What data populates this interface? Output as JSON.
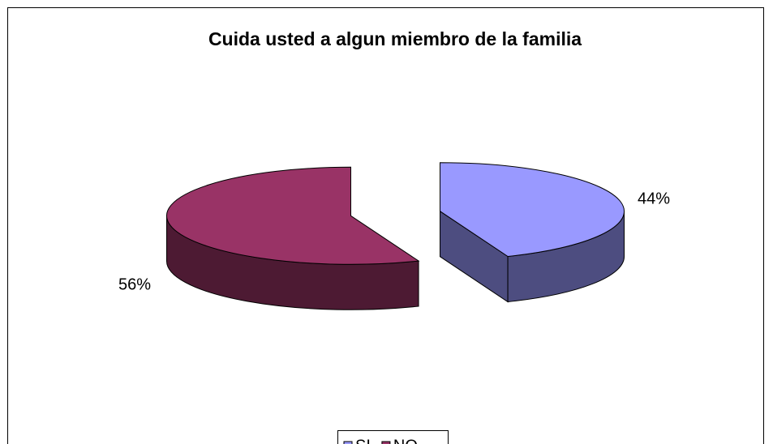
{
  "chart_data": {
    "type": "pie",
    "title": "Cuida usted a algun miembro de la familia",
    "categories": [
      "SI",
      "NO"
    ],
    "values": [
      44,
      56
    ],
    "value_labels": [
      "44%",
      "56%"
    ],
    "colors": [
      "#9999ff",
      "#993366"
    ],
    "legend": "bottom"
  }
}
